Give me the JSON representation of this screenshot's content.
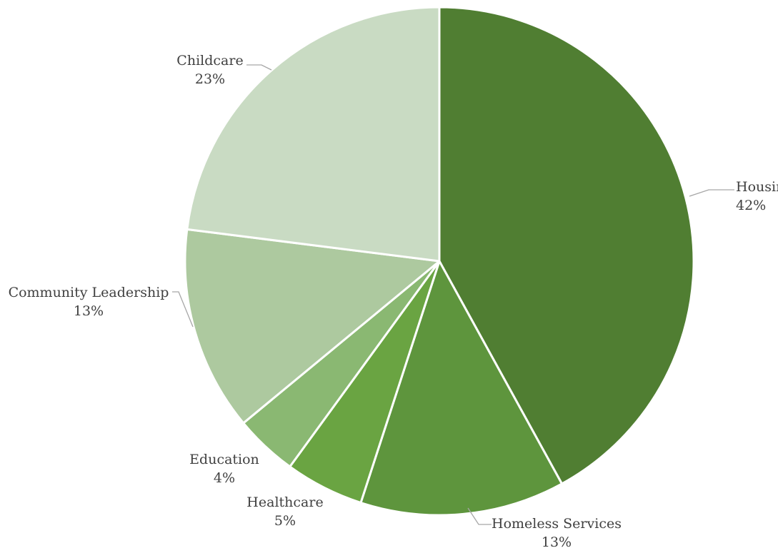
{
  "chart_data": {
    "type": "pie",
    "title": "",
    "start_angle_deg": 0,
    "direction": "clockwise",
    "slices": [
      {
        "label": "Housing",
        "value": 42,
        "value_label": "42%",
        "color": "#507e32"
      },
      {
        "label": "Homeless Services",
        "value": 13,
        "value_label": "13%",
        "color": "#5e953d"
      },
      {
        "label": "Healthcare",
        "value": 5,
        "value_label": "5%",
        "color": "#6aa442"
      },
      {
        "label": "Education",
        "value": 4,
        "value_label": "4%",
        "color": "#8ab872"
      },
      {
        "label": "Community Leadership",
        "value": 13,
        "value_label": "13%",
        "color": "#adc99f"
      },
      {
        "label": "Childcare",
        "value": 23,
        "value_label": "23%",
        "color": "#c9dbc3"
      }
    ]
  }
}
